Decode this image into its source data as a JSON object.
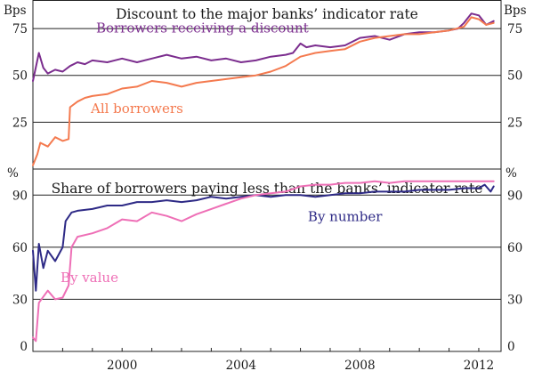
{
  "colors": {
    "discount_receivers": "#7b2d8e",
    "all_borrowers": "#f47a4f",
    "by_number": "#2e2a86",
    "by_value": "#ee6fb6"
  },
  "chart_data": [
    {
      "type": "line",
      "title": "Discount to the major banks’ indicator rate",
      "left_unit": "Bps",
      "right_unit": "Bps",
      "ylim": [
        0,
        90
      ],
      "xlim": [
        1997.0,
        2012.75
      ],
      "yticks": [
        0,
        25,
        50,
        75
      ],
      "ytick_labels": [
        "",
        "25",
        "50",
        "75"
      ],
      "series": [
        {
          "name": "Borrowers receiving a discount",
          "color_key": "discount_receivers",
          "x": [
            1997.0,
            1997.2,
            1997.35,
            1997.5,
            1997.75,
            1998.0,
            1998.25,
            1998.5,
            1998.75,
            1999.0,
            1999.5,
            2000.0,
            2000.5,
            2001.0,
            2001.5,
            2002.0,
            2002.5,
            2003.0,
            2003.5,
            2004.0,
            2004.5,
            2005.0,
            2005.5,
            2005.75,
            2006.0,
            2006.2,
            2006.5,
            2007.0,
            2007.5,
            2008.0,
            2008.5,
            2009.0,
            2009.5,
            2010.0,
            2010.5,
            2011.0,
            2011.3,
            2011.5,
            2011.75,
            2012.0,
            2012.25,
            2012.5
          ],
          "values": [
            47,
            62,
            54,
            51,
            53,
            52,
            55,
            57,
            56,
            58,
            57,
            59,
            57,
            59,
            61,
            59,
            60,
            58,
            59,
            57,
            58,
            60,
            61,
            62,
            67,
            65,
            66,
            65,
            66,
            70,
            71,
            69,
            72,
            73,
            73,
            74,
            75,
            78,
            83,
            82,
            77,
            79
          ]
        },
        {
          "name": "All borrowers",
          "color_key": "all_borrowers",
          "x": [
            1997.0,
            1997.15,
            1997.25,
            1997.5,
            1997.75,
            1998.0,
            1998.2,
            1998.25,
            1998.5,
            1998.75,
            1999.0,
            1999.5,
            2000.0,
            2000.5,
            2001.0,
            2001.5,
            2002.0,
            2002.5,
            2003.0,
            2003.5,
            2004.0,
            2004.5,
            2005.0,
            2005.5,
            2006.0,
            2006.5,
            2007.0,
            2007.5,
            2008.0,
            2008.5,
            2009.0,
            2009.5,
            2010.0,
            2010.5,
            2011.0,
            2011.5,
            2011.75,
            2012.0,
            2012.25,
            2012.5
          ],
          "values": [
            2,
            8,
            14,
            12,
            17,
            15,
            16,
            33,
            36,
            38,
            39,
            40,
            43,
            44,
            47,
            46,
            44,
            46,
            47,
            48,
            49,
            50,
            52,
            55,
            60,
            62,
            63,
            64,
            68,
            70,
            71,
            72,
            72,
            73,
            74,
            76,
            81,
            80,
            77,
            78
          ]
        }
      ],
      "annotations": [
        {
          "text": "Borrowers receiving a discount",
          "color_key": "discount_receivers",
          "x": 2002.7,
          "y": 73
        },
        {
          "text": "All borrowers",
          "color_key": "all_borrowers",
          "x": 2000.5,
          "y": 30
        }
      ]
    },
    {
      "type": "line",
      "title": "Share of borrowers paying less than the banks’ indicator rate",
      "left_unit": "%",
      "right_unit": "%",
      "ylim": [
        0,
        105
      ],
      "xlim": [
        1997.0,
        2012.75
      ],
      "yticks": [
        0,
        30,
        60,
        90
      ],
      "ytick_labels": [
        "0",
        "30",
        "60",
        "90"
      ],
      "xticks": [
        2000,
        2004,
        2008,
        2012
      ],
      "xtick_labels": [
        "2000",
        "2004",
        "2008",
        "2012"
      ],
      "series": [
        {
          "name": "By number",
          "color_key": "by_number",
          "x": [
            1997.0,
            1997.1,
            1997.2,
            1997.35,
            1997.5,
            1997.75,
            1998.0,
            1998.1,
            1998.3,
            1998.5,
            1999.0,
            1999.5,
            2000.0,
            2000.5,
            2001.0,
            2001.5,
            2002.0,
            2002.5,
            2003.0,
            2003.5,
            2004.0,
            2004.5,
            2005.0,
            2005.5,
            2006.0,
            2006.5,
            2007.0,
            2007.5,
            2008.0,
            2008.5,
            2009.0,
            2009.5,
            2010.0,
            2010.5,
            2011.0,
            2011.5,
            2012.0,
            2012.2,
            2012.4,
            2012.5
          ],
          "values": [
            58,
            35,
            62,
            48,
            58,
            52,
            60,
            75,
            80,
            81,
            82,
            84,
            84,
            86,
            86,
            87,
            86,
            87,
            89,
            88,
            89,
            90,
            89,
            90,
            90,
            89,
            90,
            91,
            91,
            92,
            92,
            92,
            93,
            93,
            93,
            94,
            94,
            96,
            92,
            95
          ]
        },
        {
          "name": "By value",
          "color_key": "by_value",
          "x": [
            1997.0,
            1997.1,
            1997.2,
            1997.5,
            1997.75,
            1998.0,
            1998.2,
            1998.3,
            1998.5,
            1999.0,
            1999.5,
            2000.0,
            2000.5,
            2001.0,
            2001.5,
            2002.0,
            2002.5,
            2003.0,
            2003.5,
            2004.0,
            2004.5,
            2005.0,
            2005.5,
            2006.0,
            2006.5,
            2007.0,
            2007.5,
            2008.0,
            2008.5,
            2009.0,
            2009.5,
            2010.0,
            2010.5,
            2011.0,
            2011.5,
            2012.0,
            2012.5
          ],
          "values": [
            8,
            6,
            28,
            35,
            30,
            31,
            38,
            60,
            66,
            68,
            71,
            76,
            75,
            80,
            78,
            75,
            79,
            82,
            85,
            88,
            90,
            91,
            92,
            95,
            96,
            96,
            97,
            97,
            98,
            97,
            98,
            98,
            98,
            98,
            98,
            98,
            98
          ]
        }
      ],
      "annotations": [
        {
          "text": "By number",
          "color_key": "by_number",
          "x": 2007.5,
          "y": 75
        },
        {
          "text": "By value",
          "color_key": "by_value",
          "x": 1998.9,
          "y": 40
        }
      ]
    }
  ]
}
